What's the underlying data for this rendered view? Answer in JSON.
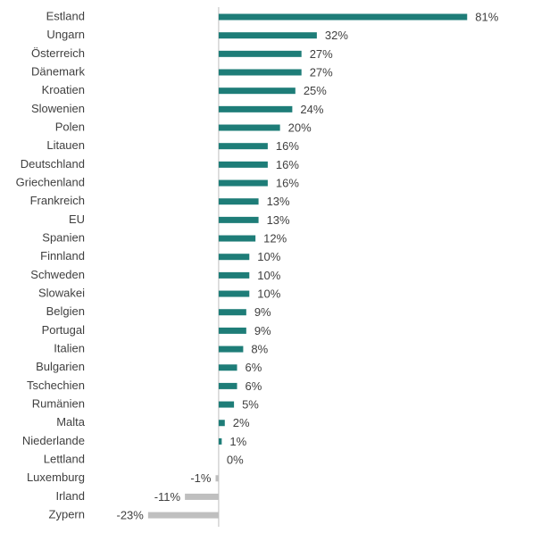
{
  "chart_data": {
    "type": "bar",
    "orientation": "horizontal",
    "categories": [
      "Estland",
      "Ungarn",
      "Österreich",
      "Dänemark",
      "Kroatien",
      "Slowenien",
      "Polen",
      "Litauen",
      "Deutschland",
      "Griechenland",
      "Frankreich",
      "EU",
      "Spanien",
      "Finnland",
      "Schweden",
      "Slowakei",
      "Belgien",
      "Portugal",
      "Italien",
      "Bulgarien",
      "Tschechien",
      "Rumänien",
      "Malta",
      "Niederlande",
      "Lettland",
      "Luxemburg",
      "Irland",
      "Zypern"
    ],
    "values": [
      81,
      32,
      27,
      27,
      25,
      24,
      20,
      16,
      16,
      16,
      13,
      13,
      12,
      10,
      10,
      10,
      9,
      9,
      8,
      6,
      6,
      5,
      2,
      1,
      0,
      -1,
      -11,
      -23
    ],
    "value_labels": [
      "81%",
      "32%",
      "27%",
      "27%",
      "25%",
      "24%",
      "20%",
      "16%",
      "16%",
      "16%",
      "13%",
      "13%",
      "12%",
      "10%",
      "10%",
      "10%",
      "9%",
      "9%",
      "8%",
      "6%",
      "6%",
      "5%",
      "2%",
      "1%",
      "0%",
      "-1%",
      "-11%",
      "-23%"
    ],
    "color": "#1e7d78",
    "negative_color": "#bfbfbf",
    "xlim": [
      -25,
      85
    ]
  }
}
